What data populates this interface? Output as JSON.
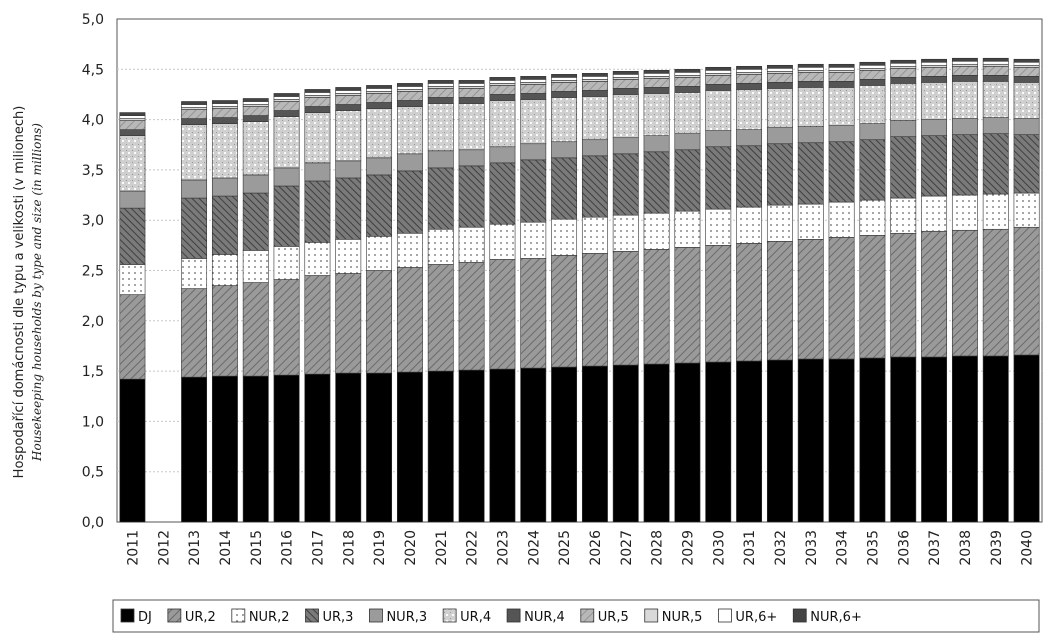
{
  "chart_data": {
    "type": "bar",
    "stacked": true,
    "ylabel": "Hospodařící domácnosti dle typu a velikosti (v milionech)",
    "ylabel_en": "Housekeeping households by type and size (in millions)",
    "ylim": [
      0,
      5.0
    ],
    "yticks": [
      "0,0",
      "0,5",
      "1,0",
      "1,5",
      "2,0",
      "2,5",
      "3,0",
      "3,5",
      "4,0",
      "4,5",
      "5,0"
    ],
    "grid": true,
    "legend_position": "bottom",
    "categories": [
      "2011",
      "2012",
      "2013",
      "2014",
      "2015",
      "2016",
      "2017",
      "2018",
      "2019",
      "2020",
      "2021",
      "2022",
      "2023",
      "2024",
      "2025",
      "2026",
      "2027",
      "2028",
      "2029",
      "2030",
      "2031",
      "2032",
      "2033",
      "2034",
      "2035",
      "2036",
      "2037",
      "2038",
      "2039",
      "2040"
    ],
    "series": [
      {
        "name": "DJ",
        "values": [
          1.42,
          null,
          1.44,
          1.45,
          1.45,
          1.46,
          1.47,
          1.48,
          1.48,
          1.49,
          1.5,
          1.51,
          1.52,
          1.53,
          1.54,
          1.55,
          1.56,
          1.57,
          1.58,
          1.59,
          1.6,
          1.61,
          1.62,
          1.62,
          1.63,
          1.64,
          1.64,
          1.65,
          1.65,
          1.66
        ]
      },
      {
        "name": "UR,2",
        "values": [
          0.84,
          null,
          0.88,
          0.9,
          0.93,
          0.95,
          0.98,
          0.99,
          1.02,
          1.04,
          1.06,
          1.07,
          1.09,
          1.09,
          1.11,
          1.12,
          1.13,
          1.14,
          1.15,
          1.16,
          1.17,
          1.18,
          1.19,
          1.21,
          1.22,
          1.23,
          1.25,
          1.25,
          1.26,
          1.27
        ]
      },
      {
        "name": "NUR,2",
        "values": [
          0.3,
          null,
          0.3,
          0.31,
          0.32,
          0.33,
          0.33,
          0.34,
          0.34,
          0.34,
          0.35,
          0.35,
          0.35,
          0.36,
          0.36,
          0.36,
          0.36,
          0.36,
          0.36,
          0.36,
          0.36,
          0.36,
          0.35,
          0.35,
          0.35,
          0.35,
          0.35,
          0.35,
          0.35,
          0.34
        ]
      },
      {
        "name": "UR,3",
        "values": [
          0.56,
          null,
          0.6,
          0.58,
          0.57,
          0.6,
          0.61,
          0.61,
          0.61,
          0.62,
          0.61,
          0.61,
          0.61,
          0.62,
          0.61,
          0.61,
          0.61,
          0.61,
          0.61,
          0.62,
          0.61,
          0.61,
          0.61,
          0.6,
          0.6,
          0.61,
          0.6,
          0.6,
          0.6,
          0.58
        ]
      },
      {
        "name": "NUR,3",
        "values": [
          0.17,
          null,
          0.18,
          0.18,
          0.18,
          0.18,
          0.18,
          0.17,
          0.17,
          0.17,
          0.17,
          0.16,
          0.16,
          0.16,
          0.16,
          0.16,
          0.16,
          0.16,
          0.16,
          0.16,
          0.16,
          0.16,
          0.16,
          0.16,
          0.16,
          0.16,
          0.16,
          0.16,
          0.16,
          0.16
        ]
      },
      {
        "name": "UR,4",
        "values": [
          0.55,
          null,
          0.55,
          0.54,
          0.53,
          0.51,
          0.5,
          0.5,
          0.49,
          0.47,
          0.47,
          0.46,
          0.46,
          0.44,
          0.44,
          0.43,
          0.43,
          0.42,
          0.41,
          0.4,
          0.4,
          0.39,
          0.39,
          0.38,
          0.38,
          0.37,
          0.37,
          0.37,
          0.36,
          0.36
        ]
      },
      {
        "name": "NUR,4",
        "values": [
          0.06,
          null,
          0.06,
          0.06,
          0.06,
          0.06,
          0.06,
          0.06,
          0.06,
          0.06,
          0.06,
          0.06,
          0.06,
          0.06,
          0.06,
          0.06,
          0.06,
          0.06,
          0.06,
          0.06,
          0.06,
          0.06,
          0.06,
          0.06,
          0.06,
          0.06,
          0.06,
          0.06,
          0.06,
          0.06
        ]
      },
      {
        "name": "UR,5",
        "values": [
          0.09,
          null,
          0.09,
          0.09,
          0.09,
          0.09,
          0.09,
          0.09,
          0.09,
          0.09,
          0.09,
          0.09,
          0.09,
          0.09,
          0.09,
          0.09,
          0.09,
          0.09,
          0.09,
          0.09,
          0.09,
          0.09,
          0.09,
          0.09,
          0.09,
          0.09,
          0.09,
          0.09,
          0.09,
          0.09
        ]
      },
      {
        "name": "NUR,5",
        "values": [
          0.02,
          null,
          0.02,
          0.02,
          0.02,
          0.02,
          0.02,
          0.02,
          0.02,
          0.02,
          0.02,
          0.02,
          0.02,
          0.02,
          0.02,
          0.02,
          0.02,
          0.02,
          0.02,
          0.02,
          0.02,
          0.02,
          0.02,
          0.02,
          0.02,
          0.02,
          0.02,
          0.02,
          0.02,
          0.02
        ]
      },
      {
        "name": "UR,6+",
        "values": [
          0.03,
          null,
          0.03,
          0.03,
          0.03,
          0.03,
          0.03,
          0.03,
          0.03,
          0.03,
          0.03,
          0.03,
          0.03,
          0.03,
          0.03,
          0.03,
          0.03,
          0.03,
          0.03,
          0.03,
          0.03,
          0.03,
          0.03,
          0.03,
          0.03,
          0.03,
          0.03,
          0.03,
          0.03,
          0.03
        ]
      },
      {
        "name": "NUR,6+",
        "values": [
          0.03,
          null,
          0.03,
          0.03,
          0.03,
          0.03,
          0.03,
          0.03,
          0.03,
          0.03,
          0.03,
          0.03,
          0.03,
          0.03,
          0.03,
          0.03,
          0.03,
          0.03,
          0.03,
          0.03,
          0.03,
          0.03,
          0.03,
          0.03,
          0.03,
          0.03,
          0.03,
          0.03,
          0.03,
          0.03
        ]
      }
    ]
  }
}
